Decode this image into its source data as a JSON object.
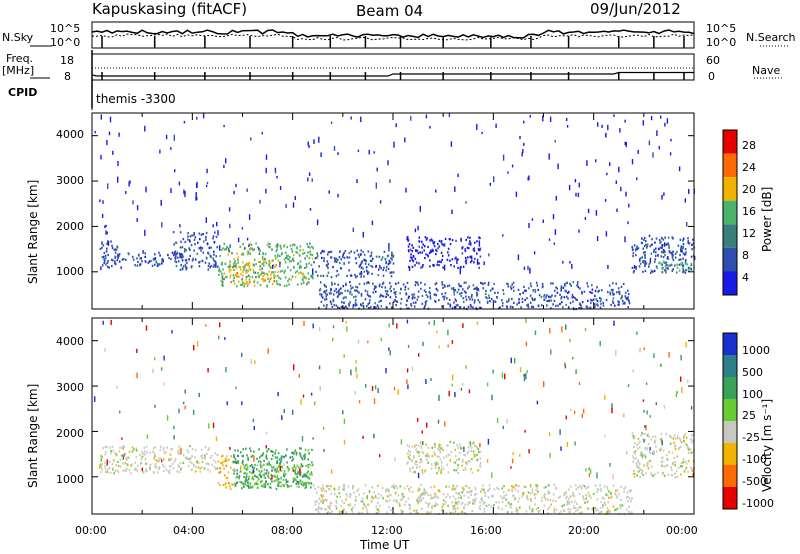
{
  "header": {
    "station": "Kapuskasing (fitACF)",
    "beam": "Beam 04",
    "date": "09/Jun/2012"
  },
  "top_panels": {
    "nsky_label": "N.Sky",
    "nsky_ticks": [
      "10^5",
      "10^0"
    ],
    "nsearch_label": "N.Search",
    "nsearch_ticks": [
      "10^5",
      "10^0"
    ],
    "freq_label": "Freq.",
    "freq_unit": "[MHz]",
    "freq_ticks": [
      "18",
      "8"
    ],
    "nave_label": "Nave",
    "nave_ticks": [
      "60",
      "0"
    ],
    "cpid_label": "CPID",
    "cpid_value": "themis -3300"
  },
  "chart_data": [
    {
      "type": "heatmap",
      "name": "power",
      "ylabel": "Slant Range [km]",
      "xlabel": "",
      "xlim": [
        0,
        24
      ],
      "ylim": [
        180,
        4500
      ],
      "yticks": [
        "1000",
        "2000",
        "3000",
        "4000"
      ],
      "colorbar_label": "Power [dB]",
      "colorbar_ticks": [
        "4",
        "8",
        "12",
        "16",
        "20",
        "24",
        "28"
      ],
      "colorbar_colors": [
        "#1a1ae6",
        "#2e4fb0",
        "#3a7f7a",
        "#4bb36a",
        "#f0b400",
        "#ff6a00",
        "#e60000"
      ],
      "regions": [
        {
          "t": [
            0.3,
            1.0
          ],
          "r": [
            1100,
            1700
          ],
          "level": 1
        },
        {
          "t": [
            1.0,
            3.2
          ],
          "r": [
            1150,
            1450
          ],
          "level": 1
        },
        {
          "t": [
            3.2,
            5.0
          ],
          "r": [
            1050,
            1900
          ],
          "level": 1
        },
        {
          "t": [
            5.0,
            8.8
          ],
          "r": [
            700,
            1650
          ],
          "level": 3
        },
        {
          "t": [
            5.4,
            6.3
          ],
          "r": [
            750,
            1250
          ],
          "level": 4
        },
        {
          "t": [
            6.6,
            7.4
          ],
          "r": [
            800,
            1300
          ],
          "level": 4
        },
        {
          "t": [
            8.8,
            12.0
          ],
          "r": [
            900,
            1500
          ],
          "level": 1
        },
        {
          "t": [
            9.0,
            21.5
          ],
          "r": [
            200,
            800
          ],
          "level": 1
        },
        {
          "t": [
            12.5,
            15.5
          ],
          "r": [
            1100,
            1800
          ],
          "level": 0
        },
        {
          "t": [
            21.5,
            24.0
          ],
          "r": [
            1000,
            1800
          ],
          "level": 1
        },
        {
          "t": [
            22.5,
            24.0
          ],
          "r": [
            1050,
            1250
          ],
          "level": 3
        }
      ]
    },
    {
      "type": "heatmap",
      "name": "velocity",
      "ylabel": "Slant Range [km]",
      "xlabel": "Time UT",
      "xlim": [
        0,
        24
      ],
      "ylim": [
        180,
        4500
      ],
      "yticks": [
        "1000",
        "2000",
        "3000",
        "4000"
      ],
      "xticks": [
        "00:00",
        "04:00",
        "08:00",
        "12:00",
        "16:00",
        "20:00",
        "00:00"
      ],
      "colorbar_label": "Velocity [m s⁻¹]",
      "colorbar_ticks": [
        "1000",
        "500",
        "100",
        "25",
        "-25",
        "-100",
        "-500",
        "-1000"
      ],
      "colorbar_colors": [
        "#1a2fd0",
        "#2e7d8a",
        "#3aa35a",
        "#66cc33",
        "#c8c8c0",
        "#f0b400",
        "#ff6a00",
        "#e60000"
      ],
      "regions": [
        {
          "t": [
            0.3,
            5.0
          ],
          "r": [
            1100,
            1700
          ],
          "level": 4
        },
        {
          "t": [
            5.0,
            5.6
          ],
          "r": [
            750,
            1500
          ],
          "level": 5
        },
        {
          "t": [
            5.6,
            8.8
          ],
          "r": [
            750,
            1650
          ],
          "level": 2
        },
        {
          "t": [
            6.0,
            8.8
          ],
          "r": [
            800,
            1300
          ],
          "level": 3
        },
        {
          "t": [
            8.8,
            21.5
          ],
          "r": [
            200,
            850
          ],
          "level": 4
        },
        {
          "t": [
            12.5,
            15.5
          ],
          "r": [
            1100,
            1800
          ],
          "level": 4
        },
        {
          "t": [
            21.5,
            24.0
          ],
          "r": [
            1000,
            2000
          ],
          "level": 4
        }
      ]
    }
  ]
}
